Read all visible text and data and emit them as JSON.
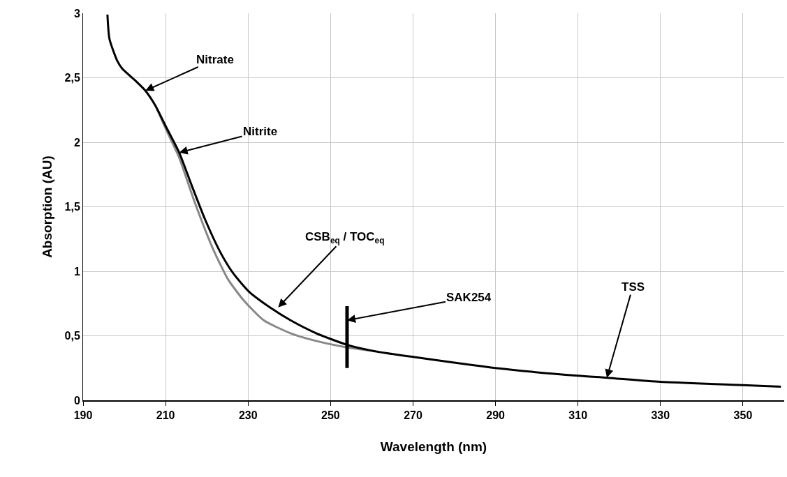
{
  "chart_data": {
    "type": "line",
    "xlabel": "Wavelength (nm)",
    "ylabel": "Absorption (AU)",
    "xlim": [
      190,
      360
    ],
    "ylim": [
      0,
      3
    ],
    "xticks": [
      190,
      210,
      230,
      250,
      270,
      290,
      310,
      330,
      350
    ],
    "yticks": [
      0,
      {
        "value": 0.5,
        "label": "0,5"
      },
      1,
      {
        "value": 1.5,
        "label": "1,5"
      },
      2,
      {
        "value": 2.5,
        "label": "2,5"
      },
      3
    ],
    "grid": true,
    "marker": "none",
    "line_style": "solid",
    "series": [
      {
        "color": "#888888",
        "x": [
          207.6,
          210.1,
          213.3,
          217,
          221.4,
          225.1,
          228.8,
          233.8,
          240.3,
          246.5,
          254,
          260.8
        ],
        "values": [
          2.28,
          2.1,
          1.88,
          1.54,
          1.18,
          0.94,
          0.78,
          0.62,
          0.52,
          0.46,
          0.41,
          0.38
        ]
      },
      {
        "color": "#000000",
        "x": [
          195.9,
          196.4,
          198.3,
          199.5,
          202.6,
          205.1,
          207.6,
          210.1,
          213.3,
          216.4,
          219.6,
          223.4,
          226.5,
          230.3,
          235.3,
          240.3,
          246.5,
          254,
          260.8,
          270,
          290,
          310,
          317,
          330,
          350,
          359.2
        ],
        "values": [
          2.99,
          2.8,
          2.63,
          2.57,
          2.48,
          2.4,
          2.28,
          2.12,
          1.92,
          1.66,
          1.4,
          1.14,
          0.98,
          0.84,
          0.72,
          0.62,
          0.52,
          0.43,
          0.38,
          0.336,
          0.25,
          0.19,
          0.175,
          0.143,
          0.118,
          0.105
        ]
      },
      {
        "color": "#000000",
        "x": [
          254,
          254,
          254
        ],
        "values": [
          0.25,
          0.62,
          0.73
        ]
      }
    ],
    "annotations": [
      {
        "text": "Nitrate",
        "x": 205.1,
        "y": 2.4
      },
      {
        "text": "Nitrite",
        "x": 213.3,
        "y": 1.92
      },
      {
        "text": "CSB$_{eq}$ / TOC$_{eq}$",
        "x": 237.3,
        "y": 0.72
      },
      {
        "text": "SAK254",
        "x": 254,
        "y": 0.62
      },
      {
        "text": "TSS",
        "x": 317,
        "y": 0.175
      }
    ]
  }
}
